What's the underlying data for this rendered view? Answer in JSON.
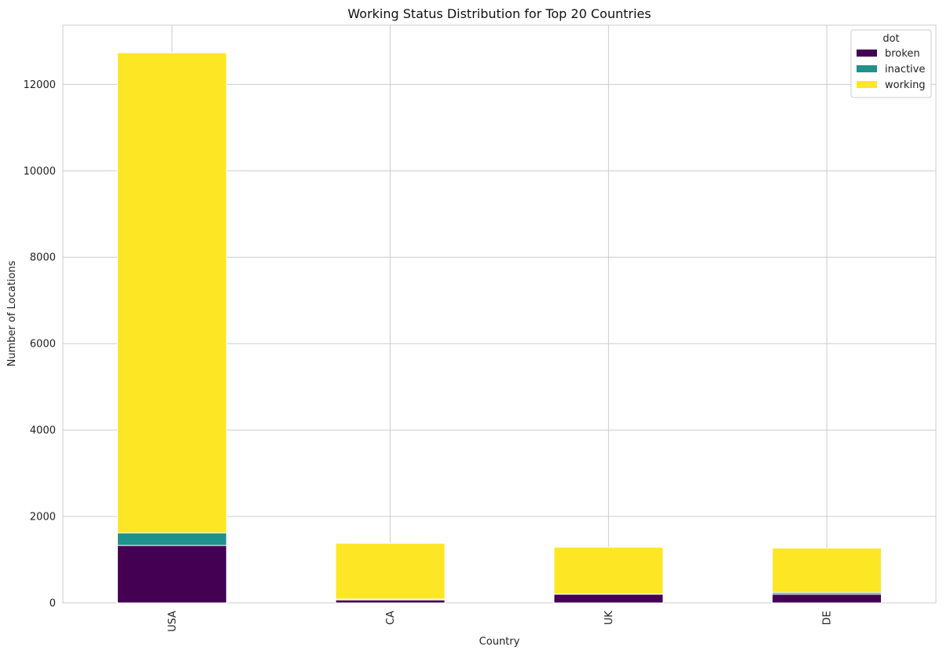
{
  "chart_data": {
    "type": "bar",
    "stacked": true,
    "title": "Working Status Distribution for Top 20 Countries",
    "xlabel": "Country",
    "ylabel": "Number of Locations",
    "categories": [
      "USA",
      "CA",
      "UK",
      "DE"
    ],
    "series": [
      {
        "name": "broken",
        "color": "#440154",
        "values": [
          1330,
          70,
          200,
          200
        ]
      },
      {
        "name": "inactive",
        "color": "#21918c",
        "values": [
          290,
          20,
          10,
          40
        ]
      },
      {
        "name": "working",
        "color": "#fde725",
        "values": [
          11110,
          1290,
          1080,
          1030
        ]
      }
    ],
    "ylim": [
      0,
      13370
    ],
    "yticks": [
      0,
      2000,
      4000,
      6000,
      8000,
      10000,
      12000
    ],
    "ytick_labels": [
      "0",
      "2000",
      "4000",
      "6000",
      "8000",
      "10000",
      "12000"
    ],
    "grid": true,
    "legend": {
      "title": "dot",
      "placement": "top-right"
    }
  }
}
